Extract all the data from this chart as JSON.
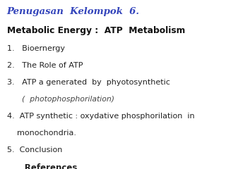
{
  "background_color": "#ffffff",
  "title": "Penugasan  Kelompok  6.",
  "title_color": "#3344bb",
  "title_fontsize": 9.5,
  "subtitle": "Metabolic Energy :  ATP  Metabolism",
  "subtitle_fontsize": 8.8,
  "subtitle_color": "#111111",
  "lines": [
    {
      "text": "1.   Bioernergy",
      "indent": 0.03,
      "italic": false,
      "bold": false,
      "color": "#222222",
      "fontsize": 8.0
    },
    {
      "text": "2.   The Role of ATP",
      "indent": 0.03,
      "italic": false,
      "bold": false,
      "color": "#222222",
      "fontsize": 8.0
    },
    {
      "text": "3.   ATP a generated  by  phyotosynthetic",
      "indent": 0.03,
      "italic": false,
      "bold": false,
      "color": "#222222",
      "fontsize": 8.0
    },
    {
      "text": "      (  photophosphorilation)",
      "indent": 0.03,
      "italic": true,
      "bold": false,
      "color": "#444444",
      "fontsize": 7.8
    },
    {
      "text": "4.  ATP synthetic : oxydative phosphorilation  in",
      "indent": 0.03,
      "italic": false,
      "bold": false,
      "color": "#222222",
      "fontsize": 8.0
    },
    {
      "text": "    monochondria.",
      "indent": 0.03,
      "italic": false,
      "bold": false,
      "color": "#222222",
      "fontsize": 8.0
    },
    {
      "text": "5.  Conclusion",
      "indent": 0.03,
      "italic": false,
      "bold": false,
      "color": "#222222",
      "fontsize": 8.0
    },
    {
      "text": "      References",
      "indent": 0.03,
      "italic": false,
      "bold": true,
      "color": "#222222",
      "fontsize": 8.5
    }
  ],
  "figsize": [
    3.2,
    2.4
  ],
  "dpi": 100
}
